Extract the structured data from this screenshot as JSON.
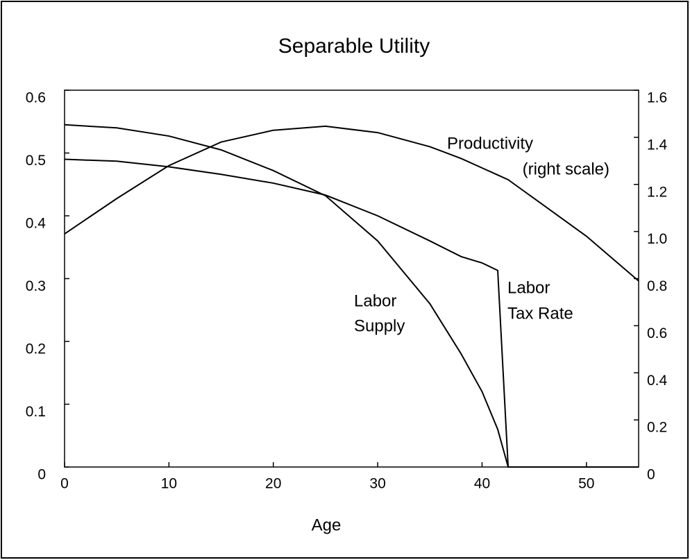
{
  "chart_data": {
    "type": "line",
    "title": "Separable Utility",
    "x_label": "Age",
    "x": [
      0,
      5,
      10,
      15,
      20,
      25,
      30,
      35,
      38,
      40,
      41.5,
      42.5,
      45,
      50,
      55
    ],
    "series": [
      {
        "color": "#000000",
        "values": [
          0.545,
          0.54,
          0.527,
          0.505,
          0.472,
          0.432,
          0.36,
          0.26,
          0.18,
          0.12,
          0.06,
          0,
          0,
          0,
          0
        ]
      },
      {
        "color": "#000000",
        "values": [
          0.49,
          0.487,
          0.478,
          0.466,
          0.452,
          0.433,
          0.4,
          0.36,
          0.335,
          0.325,
          0.313,
          0,
          0,
          0,
          0
        ]
      },
      {
        "color": "#000000",
        "axis": "y2",
        "values": [
          0.99,
          1.14,
          1.28,
          1.38,
          1.43,
          1.447,
          1.42,
          1.36,
          1.31,
          1.27,
          1.24,
          1.22,
          1.14,
          0.98,
          0.79
        ]
      }
    ],
    "annotations": [
      "Productivity",
      "(right scale)",
      "Labor",
      "Supply",
      "Labor",
      "Tax Rate"
    ],
    "xlim": [
      0,
      55
    ],
    "xticks": [
      0,
      10,
      20,
      30,
      40,
      50
    ],
    "ylim": [
      0,
      0.6
    ],
    "yticks": [
      0,
      0.1,
      0.2,
      0.3,
      0.4,
      0.5,
      0.6
    ],
    "y2lim": [
      0,
      1.6
    ],
    "y2ticks": [
      0,
      0.2,
      0.4,
      0.6,
      0.8,
      {
        "value": 1,
        "label": "1.0"
      },
      1.2,
      1.4,
      1.6
    ],
    "grid": false
  }
}
